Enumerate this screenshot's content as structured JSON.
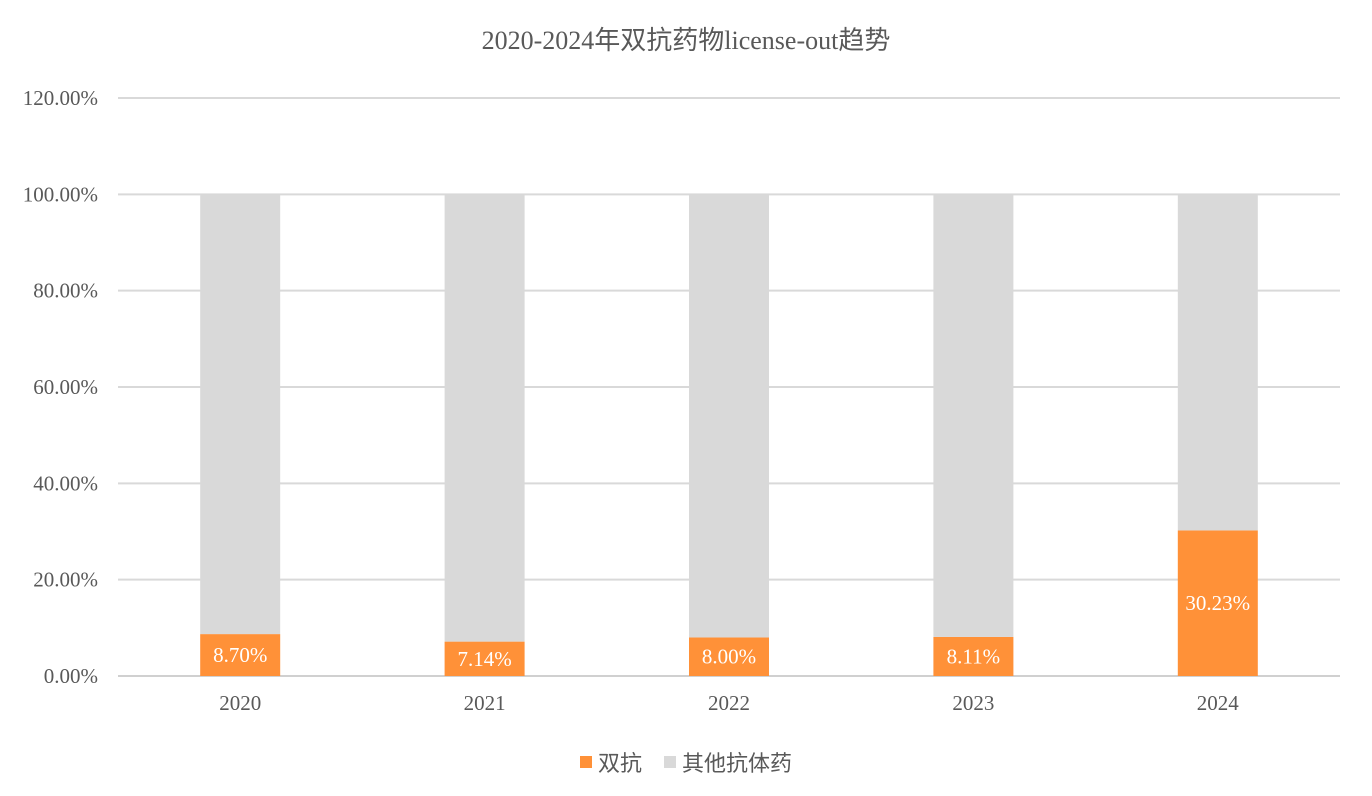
{
  "chart_data": {
    "type": "bar",
    "stacked": true,
    "title": "2020-2024年双抗药物license-out趋势",
    "categories": [
      "2020",
      "2021",
      "2022",
      "2023",
      "2024"
    ],
    "series": [
      {
        "name": "双抗",
        "color": "#FF9138",
        "values": [
          8.7,
          7.14,
          8.0,
          8.11,
          30.23
        ],
        "labels": [
          "8.70%",
          "7.14%",
          "8.00%",
          "8.11%",
          "30.23%"
        ]
      },
      {
        "name": "其他抗体药",
        "color": "#D9D9D9",
        "values": [
          91.3,
          92.86,
          92.0,
          91.89,
          69.77
        ]
      }
    ],
    "ylim": [
      0,
      120
    ],
    "yticks": [
      "0.00%",
      "20.00%",
      "40.00%",
      "60.00%",
      "80.00%",
      "100.00%",
      "120.00%"
    ],
    "grid": true,
    "legend_position": "bottom"
  }
}
